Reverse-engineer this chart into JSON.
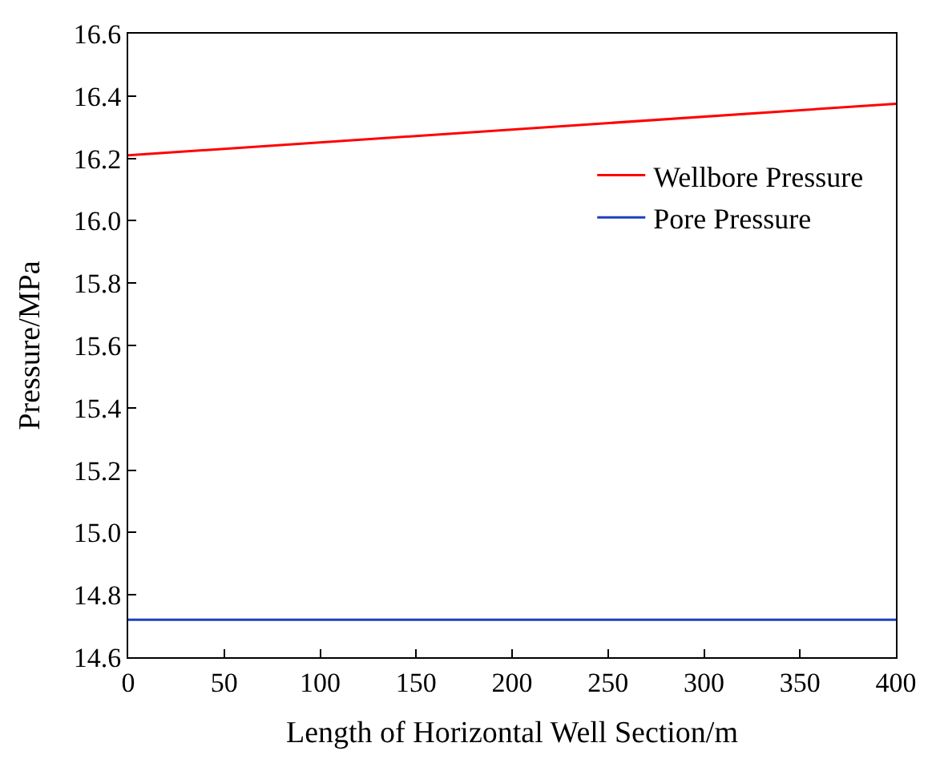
{
  "chart_data": {
    "type": "line",
    "xlabel": "Length of Horizontal Well Section/m",
    "ylabel": "Pressure/MPa",
    "x": [
      0,
      400
    ],
    "series": [
      {
        "name": "Wellbore Pressure",
        "color": "#ff0000",
        "values": [
          16.21,
          16.375
        ]
      },
      {
        "name": "Pore Pressure",
        "color": "#1f3fbf",
        "values": [
          14.72,
          14.72
        ]
      }
    ],
    "xlim": [
      0,
      400
    ],
    "xticks": [
      0,
      50,
      100,
      150,
      200,
      250,
      300,
      350,
      400
    ],
    "ylim": [
      14.6,
      16.6
    ],
    "yticks": [
      {
        "value": 14.6,
        "label": "14.6"
      },
      {
        "value": 14.8,
        "label": "14.8"
      },
      {
        "value": 15.0,
        "label": "15.0"
      },
      {
        "value": 15.2,
        "label": "15.2"
      },
      {
        "value": 15.4,
        "label": "15.4"
      },
      {
        "value": 15.6,
        "label": "15.6"
      },
      {
        "value": 15.8,
        "label": "15.8"
      },
      {
        "value": 16.0,
        "label": "16.0"
      },
      {
        "value": 16.2,
        "label": "16.2"
      },
      {
        "value": 16.4,
        "label": "16.4"
      },
      {
        "value": 16.6,
        "label": "16.6"
      }
    ],
    "legend": "top right",
    "marker": "none",
    "line_style": "solid"
  }
}
